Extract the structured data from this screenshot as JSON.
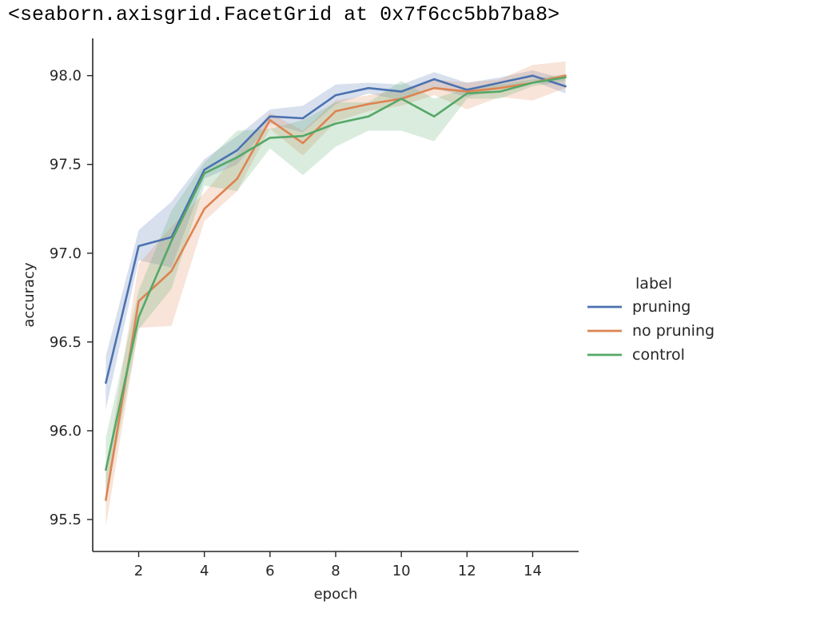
{
  "output_repr": "<seaborn.axisgrid.FacetGrid at 0x7f6cc5bb7ba8>",
  "chart_data": {
    "type": "line",
    "title": "",
    "xlabel": "epoch",
    "ylabel": "accuracy",
    "xlim": [
      0.6,
      15.4
    ],
    "ylim": [
      95.32,
      98.21
    ],
    "xticks": [
      2,
      4,
      6,
      8,
      10,
      12,
      14
    ],
    "yticks": [
      95.5,
      96.0,
      96.5,
      97.0,
      97.5,
      98.0
    ],
    "grid": false,
    "legend": {
      "title": "label",
      "placement": "right"
    },
    "x": [
      1,
      2,
      3,
      4,
      5,
      6,
      7,
      8,
      9,
      10,
      11,
      12,
      13,
      14,
      15
    ],
    "series": [
      {
        "name": "pruning",
        "color": "#4c72b0",
        "values": [
          96.27,
          97.04,
          97.09,
          97.47,
          97.58,
          97.77,
          97.76,
          97.89,
          97.93,
          97.91,
          97.98,
          97.92,
          97.96,
          98.0,
          97.94
        ],
        "ci_low": [
          96.12,
          96.96,
          96.92,
          97.42,
          97.5,
          97.73,
          97.68,
          97.84,
          97.9,
          97.86,
          97.93,
          97.88,
          97.93,
          97.97,
          97.9
        ],
        "ci_high": [
          96.42,
          97.13,
          97.29,
          97.53,
          97.66,
          97.81,
          97.83,
          97.95,
          97.96,
          97.95,
          98.02,
          97.96,
          97.99,
          98.03,
          97.98
        ]
      },
      {
        "name": "no pruning",
        "color": "#dd8452",
        "values": [
          95.61,
          96.73,
          96.9,
          97.25,
          97.42,
          97.75,
          97.62,
          97.8,
          97.84,
          97.87,
          97.93,
          97.91,
          97.93,
          97.96,
          98.0
        ],
        "ci_low": [
          95.46,
          96.58,
          96.59,
          97.18,
          97.35,
          97.7,
          97.55,
          97.74,
          97.8,
          97.83,
          97.89,
          97.81,
          97.88,
          97.86,
          97.93
        ],
        "ci_high": [
          95.76,
          96.94,
          97.15,
          97.34,
          97.56,
          97.79,
          97.69,
          97.86,
          97.89,
          97.92,
          97.98,
          97.96,
          97.98,
          98.06,
          98.08
        ]
      },
      {
        "name": "control",
        "color": "#55a868",
        "values": [
          95.78,
          96.64,
          97.07,
          97.45,
          97.54,
          97.65,
          97.66,
          97.73,
          97.77,
          97.87,
          97.77,
          97.9,
          97.91,
          97.96,
          97.99
        ],
        "ci_low": [
          95.6,
          96.57,
          96.8,
          97.38,
          97.35,
          97.59,
          97.44,
          97.6,
          97.69,
          97.69,
          97.63,
          97.87,
          97.87,
          97.94,
          97.97
        ],
        "ci_high": [
          95.96,
          96.79,
          97.24,
          97.51,
          97.69,
          97.7,
          97.75,
          97.85,
          97.85,
          97.97,
          97.87,
          97.93,
          97.95,
          97.98,
          98.01
        ]
      }
    ]
  }
}
